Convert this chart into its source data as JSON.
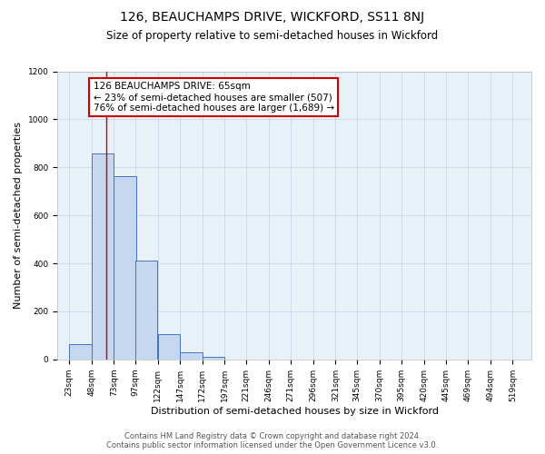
{
  "title": "126, BEAUCHAMPS DRIVE, WICKFORD, SS11 8NJ",
  "subtitle": "Size of property relative to semi-detached houses in Wickford",
  "xlabel": "Distribution of semi-detached houses by size in Wickford",
  "ylabel": "Number of semi-detached properties",
  "footnote1": "Contains HM Land Registry data © Crown copyright and database right 2024.",
  "footnote2": "Contains public sector information licensed under the Open Government Licence v3.0.",
  "annotation_line1": "126 BEAUCHAMPS DRIVE: 65sqm",
  "annotation_line2": "← 23% of semi-detached houses are smaller (507)",
  "annotation_line3": "76% of semi-detached houses are larger (1,689) →",
  "bar_left_edges": [
    23,
    48,
    73,
    97,
    122,
    147,
    172,
    197,
    221,
    246,
    271,
    296,
    321,
    345,
    370,
    395,
    420,
    445,
    469,
    494
  ],
  "bar_heights": [
    65,
    857,
    762,
    413,
    106,
    30,
    11,
    0,
    0,
    0,
    0,
    0,
    0,
    0,
    0,
    0,
    0,
    0,
    0,
    0
  ],
  "bar_widths": [
    25,
    25,
    25,
    24,
    25,
    25,
    25,
    24,
    25,
    25,
    25,
    25,
    24,
    25,
    25,
    25,
    25,
    24,
    25,
    25
  ],
  "x_tick_labels": [
    "23sqm",
    "48sqm",
    "73sqm",
    "97sqm",
    "122sqm",
    "147sqm",
    "172sqm",
    "197sqm",
    "221sqm",
    "246sqm",
    "271sqm",
    "296sqm",
    "321sqm",
    "345sqm",
    "370sqm",
    "395sqm",
    "420sqm",
    "445sqm",
    "469sqm",
    "494sqm",
    "519sqm"
  ],
  "x_tick_positions": [
    23,
    48,
    73,
    97,
    122,
    147,
    172,
    197,
    221,
    246,
    271,
    296,
    321,
    345,
    370,
    395,
    420,
    445,
    469,
    494,
    519
  ],
  "ylim": [
    0,
    1200
  ],
  "xlim": [
    10,
    540
  ],
  "yticks": [
    0,
    200,
    400,
    600,
    800,
    1000,
    1200
  ],
  "bar_color": "#c5d8f0",
  "bar_edge_color": "#4472c4",
  "grid_color": "#c8d8ea",
  "background_color": "#e8f0f8",
  "vline_x": 65,
  "vline_color": "#cc0000",
  "title_fontsize": 10,
  "subtitle_fontsize": 8.5,
  "axis_label_fontsize": 8,
  "tick_fontsize": 6.5,
  "annotation_fontsize": 7.5,
  "footnote_fontsize": 6
}
